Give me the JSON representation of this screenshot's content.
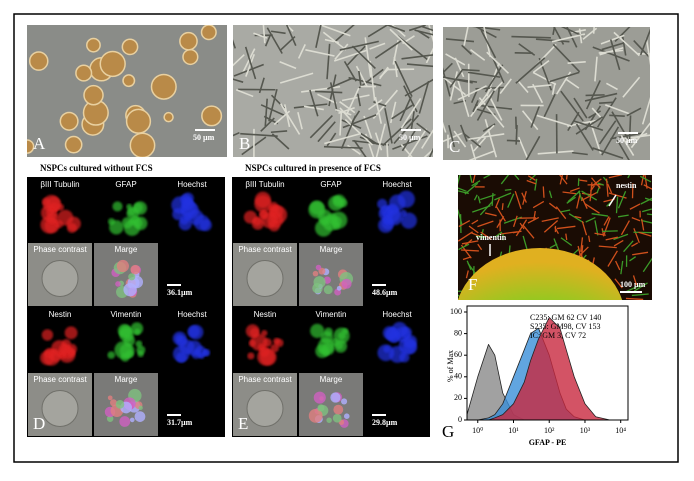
{
  "panels": {
    "A": {
      "label": "A",
      "scale_bar": "50 µm"
    },
    "B": {
      "label": "B",
      "scale_bar": "50 µm"
    },
    "C": {
      "label": "C",
      "scale_bar": "50 µm"
    },
    "D": {
      "label": "D",
      "heading": "NSPCs cultured without FCS",
      "rows": [
        [
          "βIII Tubulin",
          "GFAP",
          "Hoechst"
        ],
        [
          "Phase contrast",
          "Marge"
        ],
        [
          "Nestin",
          "Vimentin",
          "Hoechst"
        ],
        [
          "Phase contrast",
          "Marge"
        ]
      ],
      "scale_bars": [
        "36.1µm",
        "31.7µm"
      ]
    },
    "E": {
      "label": "E",
      "heading": "NSPCs cultured in presence of FCS",
      "rows": [
        [
          "βIII Tubulin",
          "GFAP",
          "Hoechst"
        ],
        [
          "Phase contrast",
          "Marge"
        ],
        [
          "Nestin",
          "Vimentin",
          "Hoechst"
        ],
        [
          "Phase contrast",
          "Marge"
        ]
      ],
      "scale_bars": [
        "48.6µm",
        "29.8µm"
      ]
    },
    "F": {
      "label": "F",
      "annotations": [
        "nestin",
        "vimentin"
      ],
      "scale_bar": "100 µm"
    }
  },
  "chart_data": {
    "type": "area",
    "label": "G",
    "ylabel": "% of Max",
    "xlabel": "GFAP - PE",
    "log_x": true,
    "x": [
      0.5,
      1,
      2,
      3,
      5,
      10,
      20,
      30,
      50,
      100,
      200,
      300,
      500,
      1000,
      2000,
      5000
    ],
    "series": [
      {
        "name": "C235: GM 62 CV 140",
        "color": "#c8283f",
        "values": [
          0,
          0,
          0,
          2,
          5,
          15,
          35,
          55,
          75,
          95,
          85,
          65,
          40,
          15,
          3,
          0
        ]
      },
      {
        "name": "S235: GM98, CV 153",
        "color": "#3a8fd8",
        "values": [
          0,
          0,
          2,
          5,
          15,
          40,
          65,
          80,
          85,
          60,
          25,
          10,
          3,
          0,
          0,
          0
        ]
      },
      {
        "name": "IC: GM 3, CV 72",
        "color": "#8a8a8a",
        "values": [
          5,
          40,
          70,
          60,
          25,
          5,
          0,
          0,
          0,
          0,
          0,
          0,
          0,
          0,
          0,
          0
        ]
      }
    ],
    "xlim": [
      0.5,
      16000
    ],
    "ylim": [
      0,
      100
    ],
    "xticks": [
      {
        "value": 1,
        "label": "10⁰"
      },
      {
        "value": 10,
        "label": "10¹"
      },
      {
        "value": 100,
        "label": "10²"
      },
      {
        "value": 1000,
        "label": "10³"
      },
      {
        "value": 10000,
        "label": "10⁴"
      }
    ],
    "yticks": [
      0,
      20,
      40,
      60,
      80,
      100
    ]
  }
}
